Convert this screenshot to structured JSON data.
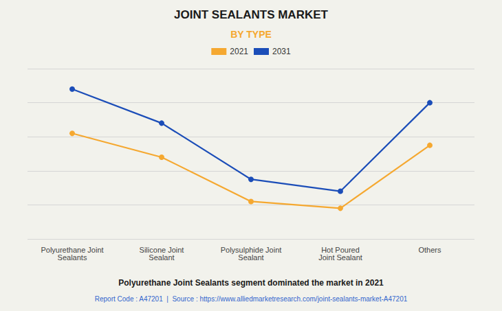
{
  "chart_data": {
    "type": "line",
    "title": "JOINT SEALANTS MARKET",
    "subtitle": "BY TYPE",
    "categories": [
      "Polyurethane Joint\nSealants",
      "Silicone Joint\nSealant",
      "Polysulphide Joint\nSealant",
      "Hot Poured\nJoint Sealant",
      "Others"
    ],
    "series": [
      {
        "name": "2021",
        "color": "#F5A830",
        "values": [
          62,
          48,
          22,
          18,
          55
        ]
      },
      {
        "name": "2031",
        "color": "#1B4DB8",
        "values": [
          88,
          68,
          35,
          28,
          80
        ]
      }
    ],
    "ylim": [
      0,
      100
    ],
    "yticks": [
      0,
      20,
      40,
      60,
      80,
      100
    ],
    "grid": true,
    "tick_labels": "x",
    "legend": "top",
    "marker": "circle",
    "annotations": [
      "Polyurethane Joint Sealants segment dominated the market in 2021",
      "Report Code : A47201  |  Source : https://www.alliedmarketresearch.com/joint-sealants-market-A47201"
    ]
  }
}
